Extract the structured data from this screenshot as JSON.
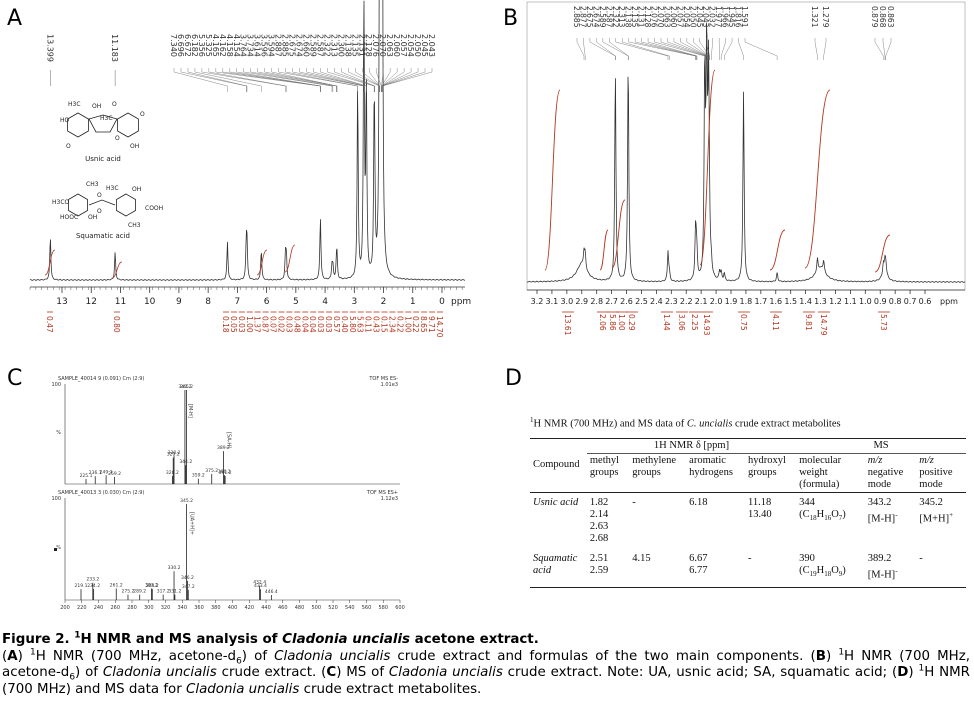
{
  "panels": {
    "A": {
      "label": "A",
      "isolated_peaks": [
        "13.399",
        "11.183"
      ],
      "cluster_peaks": [
        "7.340",
        "6.696",
        "6.672",
        "6.182",
        "5.356",
        "5.325",
        "4.165",
        "4.162",
        "4.158",
        "4.154",
        "3.764",
        "3.734",
        "3.614",
        "3.596",
        "3.594",
        "2.887",
        "2.885",
        "2.675",
        "2.674",
        "2.660",
        "2.589",
        "2.587",
        "2.322",
        "2.313",
        "2.300",
        "2.138",
        "2.135",
        "2.131",
        "2.128",
        "2.076",
        "2.070",
        "2.063",
        "2.060",
        "2.057",
        "2.054",
        "2.050",
        "2.045",
        "2.043"
      ],
      "axis_ticks": [
        "13",
        "12",
        "11",
        "10",
        "9",
        "8",
        "7",
        "6",
        "5",
        "4",
        "3",
        "2",
        "1",
        "0"
      ],
      "axis_unit": "ppm",
      "integrals": [
        "0.47",
        "0.80",
        "0.18",
        "0.05",
        "0.03",
        "1.00",
        "1.37",
        "0.87",
        "0.07",
        "0.02",
        "0.03",
        "0.48",
        "0.04",
        "0.04",
        "0.03",
        "0.03",
        "0.57",
        "0.40",
        "5.80",
        "5.63",
        "0.11",
        "0.43",
        "0.15",
        "2.34",
        "0.22",
        "1.00",
        "0.22",
        "8.65",
        "9.71",
        "14.70"
      ],
      "structures": [
        {
          "name": "Usnic acid",
          "atoms": [
            "H3C",
            "OH",
            "O",
            "HO",
            "H3C",
            "O",
            "O",
            "OH",
            "O"
          ]
        },
        {
          "name": "Squamatic acid",
          "atoms": [
            "CH3",
            "H3C",
            "OH",
            "H3CO",
            "O",
            "O",
            "COOH",
            "HOOC",
            "OH",
            "CH3"
          ]
        }
      ]
    },
    "B": {
      "label": "B",
      "cluster_peaks": [
        "2.885",
        "2.877",
        "2.675",
        "2.674",
        "2.589",
        "2.587",
        "2.322",
        "2.313",
        "2.138",
        "2.135",
        "2.131",
        "2.128",
        "2.076",
        "2.070",
        "2.063",
        "2.060",
        "2.057",
        "2.054",
        "2.050",
        "2.045",
        "2.043",
        "2.032",
        "1.977",
        "1.966",
        "1.945",
        "1.816",
        "1.591"
      ],
      "methyl_peaks": [
        "1.321",
        "1.279"
      ],
      "end_peaks": [
        "0.879",
        "0.868",
        "0.863"
      ],
      "axis_ticks": [
        "3.2",
        "3.1",
        "3.0",
        "2.9",
        "2.8",
        "2.7",
        "2.6",
        "2.5",
        "2.4",
        "2.3",
        "2.2",
        "2.1",
        "2.0",
        "1.9",
        "1.8",
        "1.7",
        "1.6",
        "1.5",
        "1.4",
        "1.3",
        "1.2",
        "1.1",
        "1.0",
        "0.9",
        "0.8",
        "0.7",
        "0.6"
      ],
      "axis_unit": "ppm",
      "integrals": [
        "13.61",
        "2.06",
        "5.86",
        "1.00",
        "0.29",
        "1.44",
        "3.06",
        "2.25",
        "14.93",
        "0.75",
        "4.11",
        "9.81",
        "14.79",
        "5.73"
      ]
    },
    "C": {
      "label": "C",
      "top": {
        "header": "SAMPLE_40014 9 (0.091) Cm (2:9)",
        "mode": "TOF MS ES-",
        "intensity": "1.01e3",
        "y_max": "100",
        "y_unit": "%",
        "peaks": [
          "225.1",
          "236.1",
          "249.1",
          "259.2",
          "328.2",
          "329.2",
          "330.2",
          "343.2",
          "344.2",
          "345.2",
          "359.2",
          "375.2",
          "389.2",
          "390.2",
          "391.2"
        ],
        "annotations": [
          "[M-H]",
          "[SA-H]"
        ]
      },
      "bottom": {
        "header": "SAMPLE_40013 3 (0.030) Cm (2:9)",
        "mode": "TOF MS ES+",
        "intensity": "1.12e3",
        "y_max": "100",
        "y_unit": "%",
        "peaks": [
          "219.1",
          "233.2",
          "234.2",
          "261.2",
          "275.2",
          "289.2",
          "303.2",
          "304.2",
          "317.2",
          "330.2",
          "331.2",
          "345.2",
          "346.2",
          "347.2",
          "432.4",
          "433.4",
          "446.4"
        ],
        "annotations": [
          "[UA+H]+"
        ]
      },
      "x_ticks": [
        "200",
        "220",
        "240",
        "260",
        "280",
        "300",
        "320",
        "340",
        "360",
        "380",
        "400",
        "420",
        "440",
        "460",
        "480",
        "500",
        "520",
        "540",
        "560",
        "580",
        "600"
      ]
    },
    "D": {
      "label": "D",
      "table": {
        "title": [
          "1",
          "H NMR (700 MHz) and MS data of ",
          "C. uncialis",
          " crude extract metabolites"
        ],
        "group_headers": [
          "Compound",
          "1H NMR δ [ppm]",
          "MS"
        ],
        "columns": [
          "methyl groups",
          "methylene groups",
          "aromatic hydrogens",
          "hydroxyl groups",
          "molecular weight (formula)",
          "m/z negative mode",
          "m/z positive mode"
        ],
        "rows": [
          {
            "compound": "Usnic acid",
            "methyl": [
              "1.82",
              "2.14",
              "2.63",
              "2.68"
            ],
            "methylene": [
              "-"
            ],
            "aromatic": [
              "6.18"
            ],
            "hydroxyl": [
              "11.18",
              "13.40"
            ],
            "mw": [
              "344",
              "(C18H16O7)"
            ],
            "neg": [
              "343.2",
              "[M-H]-"
            ],
            "pos": [
              "345.2",
              "[M+H]+"
            ]
          },
          {
            "compound": "Squamatic acid",
            "methyl": [
              "2.51",
              "2.59"
            ],
            "methylene": [
              "4.15"
            ],
            "aromatic": [
              "6.67",
              "6.77"
            ],
            "hydroxyl": [
              "-"
            ],
            "mw": [
              "390",
              "(C19H18O9)"
            ],
            "neg": [
              "389.2",
              "[M-H]-"
            ],
            "pos": [
              "-"
            ]
          }
        ]
      }
    }
  },
  "caption": {
    "title": [
      "Figure 2. ",
      "1",
      "H NMR and MS analysis of ",
      "Cladonia uncialis",
      " acetone extract."
    ],
    "body": [
      "(",
      "A",
      ") ",
      "1",
      "H NMR (700 MHz, acetone-d",
      "6",
      ") of ",
      "Cladonia uncialis",
      " crude extract and formulas of the two main components. (",
      "B",
      ") ",
      "1",
      "H NMR (700 MHz, acetone-d",
      "6",
      ") of ",
      "Cladonia uncialis",
      " crude extract. (",
      "C",
      ") MS of ",
      "Cladonia uncialis",
      " crude extract. Note: UA, usnic acid; SA, squamatic acid; (",
      "D",
      ") ",
      "1",
      "H NMR (700 MHz) and MS data for ",
      "Cladonia uncialis",
      " crude extract metabolites."
    ]
  }
}
